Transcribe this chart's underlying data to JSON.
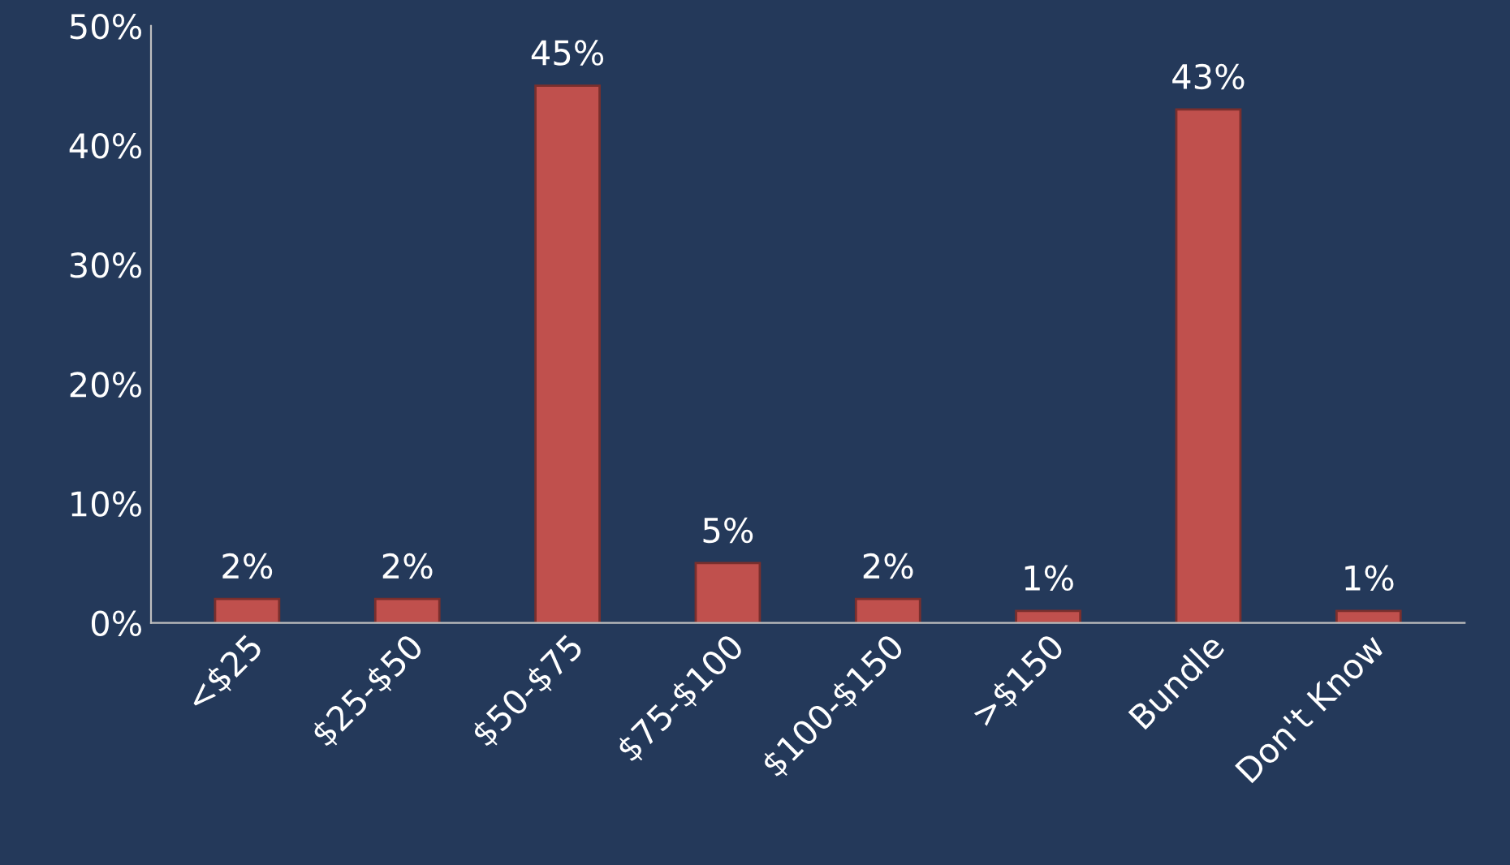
{
  "chart_data": {
    "type": "bar",
    "categories": [
      "<$25",
      "$25-$50",
      "$50-$75",
      "$75-$100",
      "$100-$150",
      ">$150",
      "Bundle",
      "Don't Know"
    ],
    "values": [
      2,
      2,
      45,
      5,
      2,
      1,
      43,
      1
    ],
    "value_labels": [
      "2%",
      "2%",
      "45%",
      "5%",
      "2%",
      "1%",
      "43%",
      "1%"
    ],
    "color": "#c0504d",
    "ylim": [
      0,
      50
    ],
    "yticks": [
      {
        "value": 0,
        "label": "0%"
      },
      {
        "value": 10,
        "label": "10%"
      },
      {
        "value": 20,
        "label": "20%"
      },
      {
        "value": 30,
        "label": "30%"
      },
      {
        "value": 40,
        "label": "40%"
      },
      {
        "value": 50,
        "label": "50%"
      }
    ],
    "grid": false,
    "legend": false
  }
}
